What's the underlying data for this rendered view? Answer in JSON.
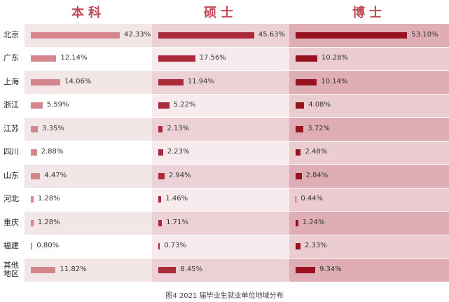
{
  "chart_data": {
    "type": "hbar-panels",
    "caption": "图4   2021 届毕业生就业单位地域分布",
    "categories": [
      "北京",
      "广东",
      "上海",
      "浙江",
      "江苏",
      "四川",
      "山东",
      "河北",
      "重庆",
      "福建",
      "其他地区"
    ],
    "series": [
      {
        "name": "本科",
        "color": "#d4868c",
        "values": [
          42.33,
          12.14,
          14.06,
          5.59,
          3.35,
          2.88,
          4.47,
          1.28,
          1.28,
          0.8,
          11.82
        ],
        "value_labels": [
          "42.33%",
          "12.14%",
          "14.06%",
          "5.59%",
          "3.35%",
          "2.88%",
          "4.47%",
          "1.28%",
          "1.28%",
          "0.80%",
          "11.82%"
        ]
      },
      {
        "name": "硕士",
        "color": "#a82a3b",
        "values": [
          45.63,
          17.56,
          11.94,
          5.22,
          2.13,
          2.23,
          2.94,
          1.46,
          1.71,
          0.73,
          8.45
        ],
        "value_labels": [
          "45.63%",
          "17.56%",
          "11.94%",
          "5.22%",
          "2.13%",
          "2.23%",
          "2.94%",
          "1.46%",
          "1.71%",
          "0.73%",
          "8.45%"
        ]
      },
      {
        "name": "博士",
        "color": "#98111f",
        "values": [
          53.1,
          10.28,
          10.14,
          4.08,
          3.72,
          2.48,
          2.84,
          0.44,
          1.24,
          2.33,
          9.34
        ],
        "value_labels": [
          "53.10%",
          "10.28%",
          "10.14%",
          "4.08%",
          "3.72%",
          "2.48%",
          "2.84%",
          "0.44%",
          "1.24%",
          "2.33%",
          "9.34%"
        ]
      }
    ]
  }
}
